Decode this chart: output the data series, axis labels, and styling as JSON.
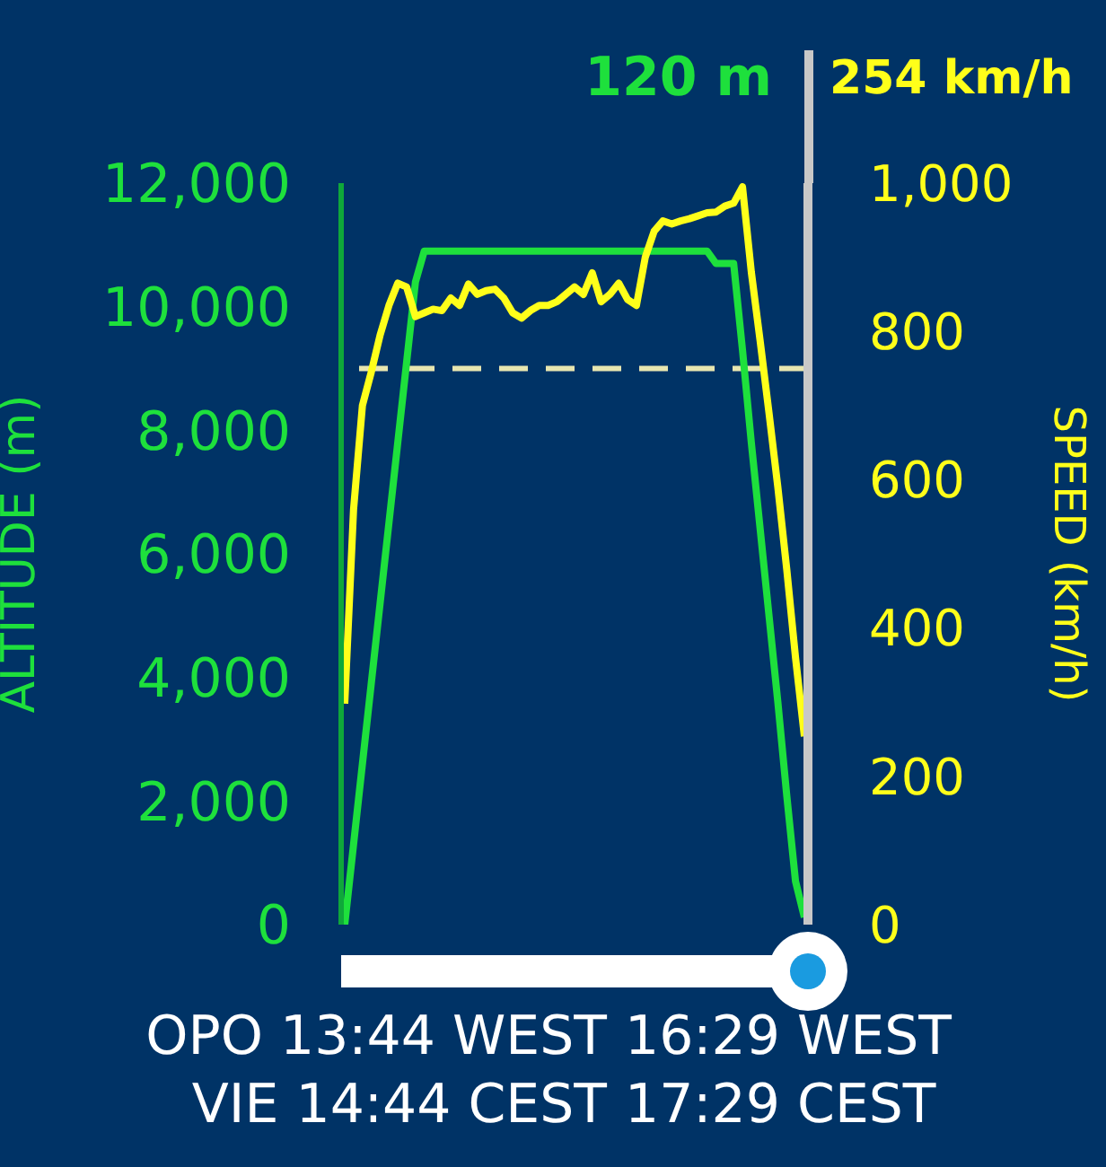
{
  "chart_data": {
    "type": "line",
    "ylabel": "ALTITUDE (m)",
    "y2label": "SPEED (km/h)",
    "categories": [
      null,
      null,
      null,
      null,
      null,
      null,
      null,
      null,
      null,
      null,
      null,
      null,
      null,
      null,
      null,
      null,
      null,
      null,
      null,
      null,
      null,
      null,
      null,
      null,
      null,
      null,
      null,
      null,
      null,
      null,
      null,
      null,
      null,
      null,
      null,
      null,
      null,
      null,
      null,
      null,
      null,
      null,
      null,
      null,
      null,
      null,
      null,
      null,
      null,
      null,
      null,
      null,
      null
    ],
    "series": [
      {
        "color": "#1ee03c",
        "values": [
          0,
          1300,
          2600,
          3900,
          5200,
          6500,
          7800,
          9100,
          10400,
          10900,
          10900,
          10900,
          10900,
          10900,
          10900,
          10900,
          10900,
          10900,
          10900,
          10900,
          10900,
          10900,
          10900,
          10900,
          10900,
          10900,
          10900,
          10900,
          10900,
          10900,
          10900,
          10900,
          10900,
          10900,
          10900,
          10900,
          10900,
          10900,
          10900,
          10900,
          10900,
          10900,
          10700,
          10700,
          10700,
          9300,
          7800,
          6400,
          5000,
          3600,
          2100,
          700,
          120
        ]
      },
      {
        "color": "#ffff1a",
        "axis": "y2",
        "values": [
          298,
          560,
          700,
          745,
          795,
          835,
          865,
          860,
          820,
          825,
          830,
          828,
          845,
          835,
          864,
          850,
          855,
          857,
          845,
          825,
          818,
          828,
          835,
          835,
          840,
          850,
          860,
          850,
          879,
          840,
          850,
          865,
          843,
          835,
          900,
          935,
          949,
          945,
          949,
          952,
          956,
          960,
          961,
          969,
          973,
          995,
          880,
          787,
          690,
          590,
          480,
          360,
          254
        ]
      }
    ],
    "ylim": [
      0,
      12000
    ],
    "yticks": [
      0,
      {
        "value": 2000,
        "label": "2,000"
      },
      {
        "value": 4000,
        "label": "4,000"
      },
      {
        "value": 6000,
        "label": "6,000"
      },
      {
        "value": 8000,
        "label": "8,000"
      },
      {
        "value": 10000,
        "label": "10,000"
      },
      {
        "value": 12000,
        "label": "12,000"
      }
    ],
    "y2lim": [
      0,
      1000
    ],
    "y2ticks": [
      0,
      200,
      400,
      600,
      800,
      {
        "value": 1000,
        "label": "1,000"
      }
    ],
    "ref_lines": [
      {
        "axis": "y2",
        "value": 750,
        "color": "#e8e6b0",
        "line_style": "dashed"
      }
    ],
    "annotations": [
      "120 m",
      "254 km/h",
      "OPO 13:44 WEST",
      "16:29 WEST",
      "VIE 14:44 CEST",
      "17:29 CEST"
    ],
    "tick_labels": "y",
    "grid": false,
    "legend": false,
    "marker": "none",
    "line_style": "solid"
  }
}
